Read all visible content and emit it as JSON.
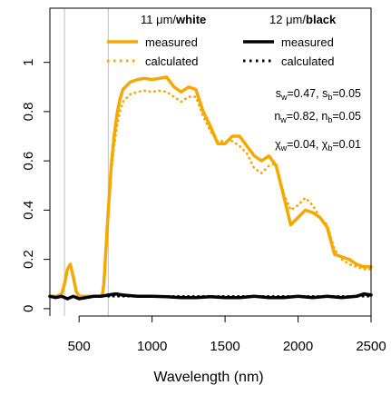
{
  "chart_data": {
    "type": "line",
    "xlabel": "Wavelength (nm)",
    "ylabel": "",
    "xlim": [
      300,
      2500
    ],
    "ylim": [
      -0.03,
      1.22
    ],
    "x_ticks": [
      500,
      1000,
      1500,
      2000,
      2500
    ],
    "y_ticks": [
      0,
      0.2,
      0.4,
      0.6,
      0.8,
      1
    ],
    "x_tick_labels": [
      "500",
      "1000",
      "1500",
      "2000",
      "2500"
    ],
    "y_tick_labels": [
      "0",
      "0.2",
      "0.4",
      "0.6",
      "0.8",
      "1"
    ],
    "vlines": [
      400,
      700
    ],
    "legend": {
      "placement": "top",
      "white_header": {
        "prefix": "11 μm/",
        "bold": "white"
      },
      "black_header": {
        "prefix": "12 μm/",
        "bold": "black"
      },
      "white_entries": [
        "measured",
        "calculated"
      ],
      "black_entries": [
        "measured",
        "calculated"
      ]
    },
    "annotations": {
      "s": {
        "w": "0.47",
        "b": "0.05"
      },
      "n": {
        "w": "0.82",
        "b": "0.05"
      },
      "chi": {
        "w": "0.04",
        "b": "0.01"
      }
    },
    "series": [
      {
        "key": "white_measured",
        "color": "#f5a800",
        "style": "solid",
        "x": [
          300,
          350,
          380,
          400,
          420,
          440,
          460,
          480,
          500,
          550,
          600,
          650,
          660,
          670,
          680,
          700,
          720,
          740,
          760,
          780,
          800,
          850,
          900,
          950,
          1000,
          1050,
          1100,
          1150,
          1200,
          1250,
          1300,
          1350,
          1400,
          1450,
          1500,
          1550,
          1600,
          1650,
          1700,
          1750,
          1800,
          1850,
          1900,
          1950,
          2000,
          2050,
          2100,
          2150,
          2200,
          2250,
          2300,
          2350,
          2400,
          2450,
          2500
        ],
        "y": [
          0.05,
          0.05,
          0.06,
          0.1,
          0.16,
          0.18,
          0.13,
          0.07,
          0.05,
          0.05,
          0.05,
          0.05,
          0.06,
          0.1,
          0.2,
          0.4,
          0.58,
          0.7,
          0.79,
          0.85,
          0.89,
          0.92,
          0.93,
          0.935,
          0.93,
          0.935,
          0.94,
          0.9,
          0.88,
          0.9,
          0.89,
          0.8,
          0.74,
          0.67,
          0.67,
          0.7,
          0.7,
          0.66,
          0.62,
          0.6,
          0.62,
          0.58,
          0.46,
          0.34,
          0.37,
          0.4,
          0.39,
          0.37,
          0.33,
          0.22,
          0.21,
          0.2,
          0.18,
          0.17,
          0.17
        ]
      },
      {
        "key": "white_calculated",
        "color": "#f5a800",
        "style": "dotted",
        "x": [
          700,
          720,
          740,
          760,
          780,
          800,
          850,
          900,
          950,
          1000,
          1050,
          1100,
          1150,
          1200,
          1250,
          1300,
          1350,
          1400,
          1450,
          1500,
          1550,
          1600,
          1650,
          1700,
          1750,
          1800,
          1850,
          1900,
          1950,
          2000,
          2050,
          2100,
          2150,
          2200,
          2250,
          2300,
          2350,
          2400,
          2450,
          2500
        ],
        "y": [
          0.4,
          0.55,
          0.66,
          0.74,
          0.8,
          0.84,
          0.87,
          0.88,
          0.885,
          0.88,
          0.885,
          0.88,
          0.86,
          0.84,
          0.86,
          0.86,
          0.78,
          0.72,
          0.68,
          0.68,
          0.68,
          0.66,
          0.63,
          0.57,
          0.55,
          0.58,
          0.59,
          0.47,
          0.4,
          0.42,
          0.45,
          0.42,
          0.37,
          0.34,
          0.24,
          0.2,
          0.18,
          0.17,
          0.16,
          0.16
        ]
      },
      {
        "key": "black_measured",
        "color": "#000000",
        "style": "solid",
        "x": [
          300,
          340,
          380,
          420,
          460,
          500,
          550,
          600,
          650,
          700,
          750,
          800,
          900,
          1000,
          1100,
          1200,
          1300,
          1400,
          1500,
          1600,
          1700,
          1800,
          1900,
          2000,
          2100,
          2200,
          2300,
          2400,
          2450,
          2500
        ],
        "y": [
          0.05,
          0.045,
          0.05,
          0.04,
          0.05,
          0.04,
          0.045,
          0.05,
          0.05,
          0.055,
          0.06,
          0.055,
          0.05,
          0.05,
          0.048,
          0.045,
          0.045,
          0.048,
          0.045,
          0.045,
          0.05,
          0.045,
          0.045,
          0.05,
          0.045,
          0.05,
          0.045,
          0.05,
          0.06,
          0.055
        ]
      },
      {
        "key": "black_calculated",
        "color": "#000000",
        "style": "dotted",
        "x": [
          700,
          800,
          900,
          1000,
          1200,
          1400,
          1600,
          1800,
          2000,
          2200,
          2400,
          2500
        ],
        "y": [
          0.05,
          0.05,
          0.05,
          0.05,
          0.05,
          0.05,
          0.05,
          0.05,
          0.05,
          0.05,
          0.05,
          0.05
        ]
      }
    ]
  }
}
